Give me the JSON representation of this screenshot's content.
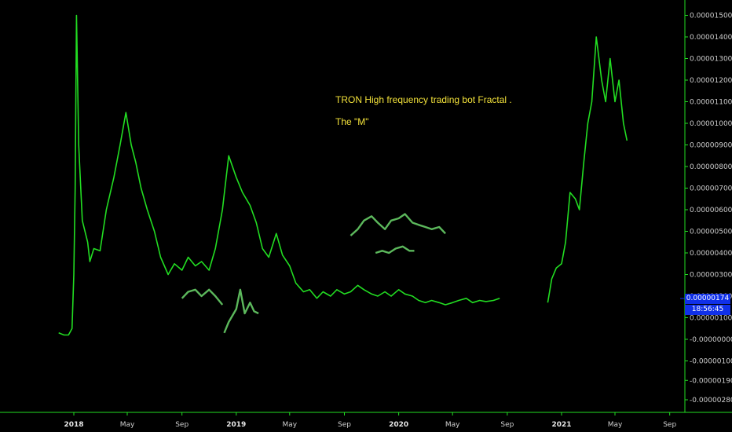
{
  "chart_data": {
    "type": "line",
    "title": "",
    "xlabel": "",
    "ylabel": "",
    "ylim": [
      -2.8e-06,
      1.5e-06
    ],
    "y_ticks": [
      "0.00001500",
      "0.00001400",
      "0.00001300",
      "0.00001200",
      "0.00001100",
      "0.00001000",
      "0.00000900",
      "0.00000800",
      "0.00000700",
      "0.00000600",
      "0.00000500",
      "0.00000400",
      "0.00000300",
      "0.00000200",
      "0.00000100",
      "-0.00000000",
      "-0.00000100",
      "-0.00000190",
      "-0.00000280"
    ],
    "x_ticks": [
      {
        "label": "2018",
        "year": true
      },
      {
        "label": "May",
        "year": false
      },
      {
        "label": "Sep",
        "year": false
      },
      {
        "label": "2019",
        "year": true
      },
      {
        "label": "May",
        "year": false
      },
      {
        "label": "Sep",
        "year": false
      },
      {
        "label": "2020",
        "year": true
      },
      {
        "label": "May",
        "year": false
      },
      {
        "label": "Sep",
        "year": false
      },
      {
        "label": "2021",
        "year": true
      },
      {
        "label": "May",
        "year": false
      },
      {
        "label": "Sep",
        "year": false
      }
    ],
    "annotations": [
      "TRON High frequency trading bot Fractal .",
      "The \"M\""
    ],
    "current_price": "0.00000174",
    "countdown": "18:56:45",
    "colors": {
      "main": "#22dd22",
      "fractal": "#5cb85c",
      "accent": "#1030e8",
      "text": "#f2e13a"
    },
    "series": [
      {
        "x": [
          "2017-11-28",
          "2017-12-10",
          "2017-12-20",
          "2017-12-28",
          "2018-01-01",
          "2018-01-04",
          "2018-01-07",
          "2018-01-12",
          "2018-01-20",
          "2018-02-01",
          "2018-02-06",
          "2018-02-15",
          "2018-03-01",
          "2018-03-15",
          "2018-04-01",
          "2018-04-15",
          "2018-04-28",
          "2018-05-10",
          "2018-05-20",
          "2018-06-01",
          "2018-06-15",
          "2018-07-01",
          "2018-07-15",
          "2018-08-01",
          "2018-08-15",
          "2018-09-01",
          "2018-09-15",
          "2018-10-01",
          "2018-10-15",
          "2018-11-01",
          "2018-11-15",
          "2018-12-01",
          "2018-12-15",
          "2019-01-01",
          "2019-01-15",
          "2019-02-01",
          "2019-02-15",
          "2019-03-01",
          "2019-03-15",
          "2019-04-01",
          "2019-04-15",
          "2019-05-01",
          "2019-05-15",
          "2019-06-01",
          "2019-06-15",
          "2019-07-01",
          "2019-07-15",
          "2019-08-01",
          "2019-08-15",
          "2019-09-01",
          "2019-09-15",
          "2019-10-01",
          "2019-10-15",
          "2019-11-01",
          "2019-11-15",
          "2019-12-01",
          "2019-12-15",
          "2020-01-01",
          "2020-01-15",
          "2020-02-01",
          "2020-02-15",
          "2020-03-01",
          "2020-03-15",
          "2020-04-01",
          "2020-04-15",
          "2020-05-01",
          "2020-05-15",
          "2020-06-01",
          "2020-06-15",
          "2020-07-01",
          "2020-07-15",
          "2020-08-01",
          "2020-08-15"
        ],
        "values": [
          0.3,
          0.2,
          0.2,
          0.5,
          3.0,
          7.0,
          15.0,
          9.0,
          5.5,
          4.5,
          3.6,
          4.2,
          4.1,
          6.0,
          7.5,
          9.0,
          10.5,
          9.0,
          8.2,
          7.0,
          6.0,
          5.0,
          3.8,
          3.0,
          3.5,
          3.2,
          3.8,
          3.4,
          3.6,
          3.2,
          4.2,
          6.0,
          8.5,
          7.5,
          6.8,
          6.2,
          5.4,
          4.2,
          3.8,
          4.9,
          3.9,
          3.4,
          2.6,
          2.2,
          2.3,
          1.9,
          2.2,
          2.0,
          2.3,
          2.1,
          2.2,
          2.5,
          2.3,
          2.1,
          2.0,
          2.2,
          2.0,
          2.3,
          2.1,
          2.0,
          1.8,
          1.7,
          1.8,
          1.7,
          1.6,
          1.7,
          1.8,
          1.9,
          1.7,
          1.8,
          1.75,
          1.8,
          1.9
        ]
      },
      {
        "x": [
          "2020-12-01",
          "2020-12-10",
          "2020-12-20",
          "2021-01-01",
          "2021-01-10",
          "2021-01-20",
          "2021-02-01",
          "2021-02-10",
          "2021-02-20",
          "2021-03-01",
          "2021-03-10",
          "2021-03-20",
          "2021-04-01",
          "2021-04-10",
          "2021-04-20",
          "2021-05-01",
          "2021-05-10",
          "2021-05-20",
          "2021-05-28"
        ],
        "values": [
          1.7,
          2.8,
          3.3,
          3.5,
          4.5,
          6.8,
          6.5,
          6.0,
          8.2,
          10.0,
          11.0,
          14.0,
          12.0,
          11.0,
          13.0,
          11.0,
          12.0,
          10.0,
          9.2
        ]
      },
      {
        "x": [
          "2018-09-01",
          "2018-09-15",
          "2018-10-01",
          "2018-10-15",
          "2018-11-01",
          "2018-11-15",
          "2018-12-01"
        ],
        "values": [
          1.9,
          2.2,
          2.3,
          2.0,
          2.3,
          2.0,
          1.6
        ]
      },
      {
        "x": [
          "2018-12-05",
          "2018-12-15",
          "2019-01-01",
          "2019-01-10",
          "2019-01-20",
          "2019-02-01",
          "2019-02-10",
          "2019-02-20"
        ],
        "values": [
          0.3,
          0.8,
          1.4,
          2.3,
          1.2,
          1.7,
          1.3,
          1.2
        ]
      },
      {
        "x": [
          "2019-09-15",
          "2019-10-01",
          "2019-10-15",
          "2019-11-01",
          "2019-11-15",
          "2019-12-01",
          "2019-12-15",
          "2020-01-01",
          "2020-01-15",
          "2020-02-01",
          "2020-02-15",
          "2020-03-01",
          "2020-03-15",
          "2020-04-01",
          "2020-04-15"
        ],
        "values": [
          4.8,
          5.1,
          5.5,
          5.7,
          5.4,
          5.1,
          5.5,
          5.6,
          5.8,
          5.4,
          5.3,
          5.2,
          5.1,
          5.2,
          4.9
        ]
      },
      {
        "x": [
          "2019-11-10",
          "2019-11-25",
          "2019-12-10",
          "2019-12-25",
          "2020-01-10",
          "2020-01-25",
          "2020-02-05"
        ],
        "values": [
          4.0,
          4.1,
          4.0,
          4.2,
          4.3,
          4.1,
          4.1
        ]
      }
    ]
  }
}
